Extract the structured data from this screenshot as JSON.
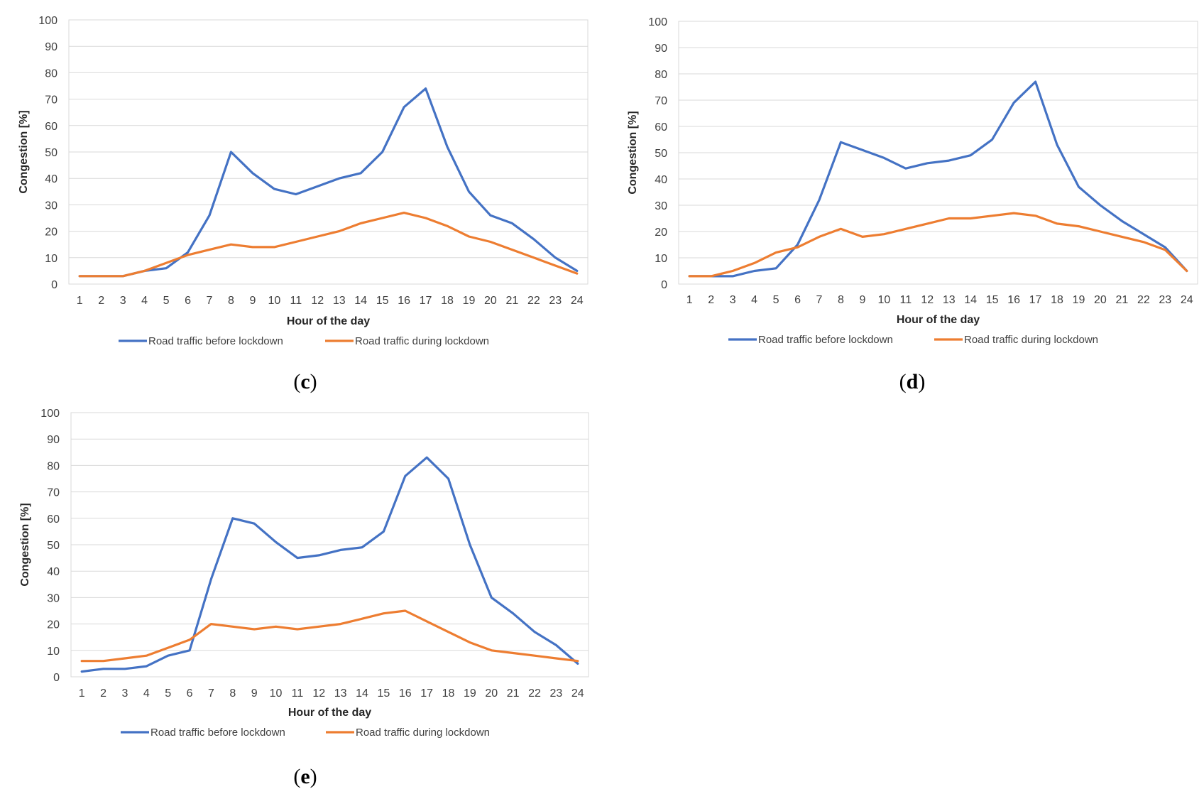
{
  "colors": {
    "before": "#4472C4",
    "during": "#ED7D31"
  },
  "chart_data": [
    {
      "type": "line",
      "panel": "c",
      "caption_left": "(",
      "caption_letter": "c",
      "caption_right": ")",
      "xlabel": "Hour of the day",
      "ylabel": "Congestion [%]",
      "ylim": [
        0,
        100
      ],
      "yticks": [
        "0",
        "10",
        "20",
        "30",
        "40",
        "50",
        "60",
        "70",
        "80",
        "90",
        "100"
      ],
      "categories": [
        "1",
        "2",
        "3",
        "4",
        "5",
        "6",
        "7",
        "8",
        "9",
        "10",
        "11",
        "12",
        "13",
        "14",
        "15",
        "16",
        "17",
        "18",
        "19",
        "20",
        "21",
        "22",
        "23",
        "24"
      ],
      "series": [
        {
          "name": "Road traffic before lockdown",
          "color_key": "before",
          "values": [
            3,
            3,
            3,
            5,
            6,
            12,
            26,
            50,
            42,
            36,
            34,
            37,
            40,
            42,
            50,
            67,
            74,
            52,
            35,
            26,
            23,
            17,
            10,
            5
          ]
        },
        {
          "name": "Road traffic during lockdown",
          "color_key": "during",
          "values": [
            3,
            3,
            3,
            5,
            8,
            11,
            13,
            15,
            14,
            14,
            16,
            18,
            20,
            23,
            25,
            27,
            25,
            22,
            18,
            16,
            13,
            10,
            7,
            4
          ]
        }
      ],
      "legend": "bottom"
    },
    {
      "type": "line",
      "panel": "d",
      "caption_left": "(",
      "caption_letter": "d",
      "caption_right": ")",
      "xlabel": "Hour of the day",
      "ylabel": "Congestion [%]",
      "ylim": [
        0,
        100
      ],
      "yticks": [
        "0",
        "10",
        "20",
        "30",
        "40",
        "50",
        "60",
        "70",
        "80",
        "90",
        "100"
      ],
      "categories": [
        "1",
        "2",
        "3",
        "4",
        "5",
        "6",
        "7",
        "8",
        "9",
        "10",
        "11",
        "12",
        "13",
        "14",
        "15",
        "16",
        "17",
        "18",
        "19",
        "20",
        "21",
        "22",
        "23",
        "24"
      ],
      "series": [
        {
          "name": "Road traffic before lockdown",
          "color_key": "before",
          "values": [
            3,
            3,
            3,
            5,
            6,
            15,
            32,
            54,
            51,
            48,
            44,
            46,
            47,
            49,
            55,
            69,
            77,
            53,
            37,
            30,
            24,
            19,
            14,
            5
          ]
        },
        {
          "name": "Road traffic during lockdown",
          "color_key": "during",
          "values": [
            3,
            3,
            5,
            8,
            12,
            14,
            18,
            21,
            18,
            19,
            21,
            23,
            25,
            25,
            26,
            27,
            26,
            23,
            22,
            20,
            18,
            16,
            13,
            5
          ]
        }
      ],
      "legend": "bottom"
    },
    {
      "type": "line",
      "panel": "e",
      "caption_left": "(",
      "caption_letter": "e",
      "caption_right": ")",
      "xlabel": "Hour of the day",
      "ylabel": "Congestion [%]",
      "ylim": [
        0,
        100
      ],
      "yticks": [
        "0",
        "10",
        "20",
        "30",
        "40",
        "50",
        "60",
        "70",
        "80",
        "90",
        "100"
      ],
      "categories": [
        "1",
        "2",
        "3",
        "4",
        "5",
        "6",
        "7",
        "8",
        "9",
        "10",
        "11",
        "12",
        "13",
        "14",
        "15",
        "16",
        "17",
        "18",
        "19",
        "20",
        "21",
        "22",
        "23",
        "24"
      ],
      "series": [
        {
          "name": "Road traffic before lockdown",
          "color_key": "before",
          "values": [
            2,
            3,
            3,
            4,
            8,
            10,
            37,
            60,
            58,
            51,
            45,
            46,
            48,
            49,
            55,
            76,
            83,
            75,
            50,
            30,
            24,
            17,
            12,
            5
          ]
        },
        {
          "name": "Road traffic during lockdown",
          "color_key": "during",
          "values": [
            6,
            6,
            7,
            8,
            11,
            14,
            20,
            19,
            18,
            19,
            18,
            19,
            20,
            22,
            24,
            25,
            21,
            17,
            13,
            10,
            9,
            8,
            7,
            6
          ]
        }
      ],
      "legend": "bottom"
    }
  ]
}
